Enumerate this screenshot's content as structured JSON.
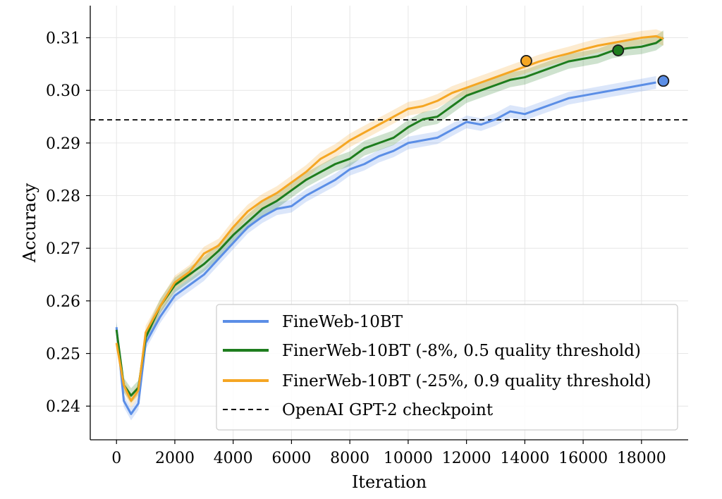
{
  "chart_data": {
    "type": "line",
    "title": "",
    "xlabel": "Iteration",
    "ylabel": "Accuracy",
    "xlim": [
      -900,
      19600
    ],
    "ylim": [
      0.2336,
      0.3161
    ],
    "xticks": [
      0,
      2000,
      4000,
      6000,
      8000,
      10000,
      12000,
      14000,
      16000,
      18000
    ],
    "yticks": [
      0.24,
      0.25,
      0.26,
      0.27,
      0.28,
      0.29,
      0.3,
      0.31
    ],
    "ytick_labels": [
      "0.24",
      "0.25",
      "0.26",
      "0.27",
      "0.28",
      "0.29",
      "0.30",
      "0.31"
    ],
    "grid": true,
    "legend_position": "lower right",
    "reference_line": {
      "name": "OpenAI GPT-2 checkpoint",
      "y": 0.2944,
      "color": "#000000",
      "style": "dashed"
    },
    "series": [
      {
        "name": "FineWeb-10BT",
        "color": "#5b8ee6",
        "band": 0.0012,
        "marker": {
          "x": 18750,
          "y": 0.3018
        },
        "x": [
          0,
          250,
          500,
          750,
          1000,
          1500,
          2000,
          2500,
          3000,
          3500,
          4000,
          4500,
          5000,
          5500,
          6000,
          6500,
          7000,
          7500,
          8000,
          8500,
          9000,
          9500,
          10000,
          10500,
          11000,
          11500,
          12000,
          12500,
          13000,
          13500,
          14000,
          14500,
          15000,
          15500,
          16000,
          16500,
          17000,
          17500,
          18000,
          18500
        ],
        "y": [
          0.255,
          0.241,
          0.2385,
          0.2405,
          0.252,
          0.257,
          0.261,
          0.263,
          0.265,
          0.268,
          0.271,
          0.274,
          0.276,
          0.2775,
          0.278,
          0.28,
          0.2815,
          0.283,
          0.285,
          0.286,
          0.2875,
          0.2885,
          0.29,
          0.2905,
          0.291,
          0.2925,
          0.294,
          0.2935,
          0.2945,
          0.296,
          0.2955,
          0.2965,
          0.2975,
          0.2985,
          0.299,
          0.2995,
          0.3,
          0.3005,
          0.301,
          0.3015
        ]
      },
      {
        "name": "FinerWeb-10BT (-8%, 0.5 quality threshold)",
        "color": "#1e7d1e",
        "band": 0.0014,
        "marker": {
          "x": 17200,
          "y": 0.3076
        },
        "x": [
          0,
          250,
          500,
          750,
          1000,
          1500,
          2000,
          2500,
          3000,
          3500,
          4000,
          4500,
          5000,
          5500,
          6000,
          6500,
          7000,
          7500,
          8000,
          8500,
          9000,
          9500,
          10000,
          10500,
          11000,
          11500,
          12000,
          12500,
          13000,
          13500,
          14000,
          14500,
          15000,
          15500,
          16000,
          16500,
          17000,
          17500,
          18000,
          18500,
          18750
        ],
        "y": [
          0.2545,
          0.244,
          0.242,
          0.2435,
          0.253,
          0.259,
          0.263,
          0.265,
          0.267,
          0.2695,
          0.2725,
          0.275,
          0.2775,
          0.279,
          0.281,
          0.283,
          0.2845,
          0.286,
          0.287,
          0.289,
          0.29,
          0.291,
          0.293,
          0.2945,
          0.295,
          0.297,
          0.299,
          0.3,
          0.301,
          0.302,
          0.3025,
          0.3035,
          0.3045,
          0.3055,
          0.306,
          0.3065,
          0.3075,
          0.308,
          0.3083,
          0.309,
          0.31
        ]
      },
      {
        "name": "FinerWeb-10BT (-25%, 0.9 quality threshold)",
        "color": "#f5a623",
        "band": 0.0013,
        "marker": {
          "x": 14050,
          "y": 0.3056
        },
        "x": [
          0,
          250,
          500,
          750,
          1000,
          1500,
          2000,
          2500,
          3000,
          3500,
          4000,
          4500,
          5000,
          5500,
          6000,
          6500,
          7000,
          7500,
          8000,
          8500,
          9000,
          9500,
          10000,
          10500,
          11000,
          11500,
          12000,
          12500,
          13000,
          13500,
          14000,
          14500,
          15000,
          15500,
          16000,
          16500,
          17000,
          17500,
          18000,
          18500,
          18750
        ],
        "y": [
          0.252,
          0.244,
          0.241,
          0.243,
          0.254,
          0.259,
          0.2635,
          0.2655,
          0.269,
          0.2705,
          0.274,
          0.277,
          0.279,
          0.2805,
          0.2825,
          0.2845,
          0.287,
          0.2885,
          0.2905,
          0.292,
          0.2935,
          0.295,
          0.2965,
          0.297,
          0.298,
          0.2995,
          0.3005,
          0.3015,
          0.3025,
          0.3035,
          0.3045,
          0.3055,
          0.3063,
          0.307,
          0.3078,
          0.3085,
          0.309,
          0.3095,
          0.31,
          0.3103,
          0.3098
        ]
      }
    ]
  }
}
